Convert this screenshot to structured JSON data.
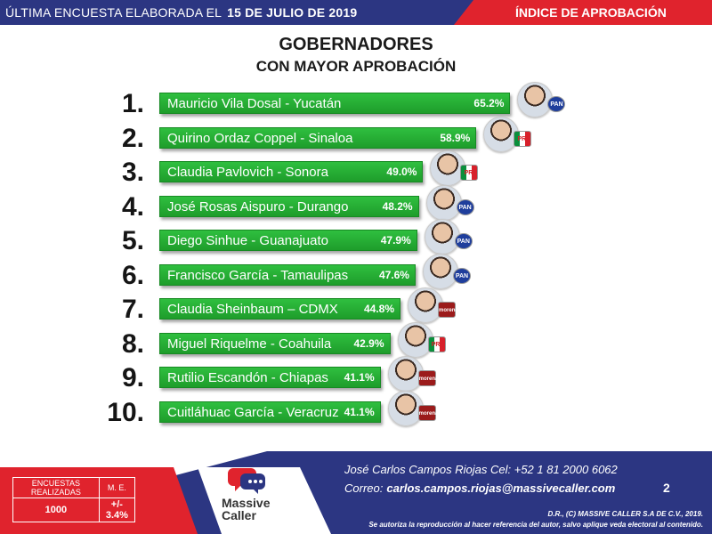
{
  "header": {
    "left_text": "ÚLTIMA ENCUESTA ELABORADA EL",
    "date": "15 DE JULIO DE 2019",
    "right_text": "ÍNDICE DE APROBACIÓN"
  },
  "chart_data": {
    "type": "bar",
    "title": "GOBERNADORES",
    "subtitle": "CON MAYOR APROBACIÓN",
    "categories": [
      "Mauricio Vila Dosal - Yucatán",
      "Quirino Ordaz Coppel - Sinaloa",
      "Claudia Pavlovich - Sonora",
      "José Rosas Aispuro - Durango",
      "Diego Sinhue - Guanajuato",
      "Francisco García - Tamaulipas",
      "Claudia Sheinbaum – CDMX",
      "Miguel Riquelme - Coahuila",
      "Rutilio Escandón - Chiapas",
      "Cuitláhuac García - Veracruz"
    ],
    "ranks": [
      "1.",
      "2.",
      "3.",
      "4.",
      "5.",
      "6.",
      "7.",
      "8.",
      "9.",
      "10."
    ],
    "values": [
      65.2,
      58.9,
      49.0,
      48.2,
      47.9,
      47.6,
      44.8,
      42.9,
      41.1,
      41.1
    ],
    "value_labels": [
      "65.2%",
      "58.9%",
      "49.0%",
      "48.2%",
      "47.9%",
      "47.6%",
      "44.8%",
      "42.9%",
      "41.1%",
      "41.1%"
    ],
    "parties": [
      "pan",
      "pri",
      "pri",
      "pan",
      "pan",
      "pan",
      "morena",
      "pri",
      "morena",
      "morena"
    ],
    "party_labels": [
      "PAN",
      "PRI",
      "PRI",
      "PAN",
      "PAN",
      "PAN",
      "morena",
      "PRI",
      "morena",
      "morena"
    ],
    "xlim": [
      0,
      100
    ],
    "colors": {
      "bar": "#22a834"
    }
  },
  "footer": {
    "table_headers": [
      "ENCUESTAS REALIZADAS",
      "M. E."
    ],
    "table_values": [
      "1000",
      "+/- 3.4%"
    ],
    "logo_text": "Massive Caller",
    "contact_line": "José Carlos Campos Riojas Cel: +52 1 81 2000 6062",
    "email_label": "Correo:",
    "email": "carlos.campos.riojas@massivecaller.com",
    "page_number": "2",
    "copyright": "D.R., (C) MASSIVE CALLER S.A DE C.V., 2019.",
    "disclaimer": "Se autoriza la reproducción al hacer referencia del autor, salvo aplique veda electoral al contenido."
  },
  "colors": {
    "blue": "#2c3682",
    "red": "#e0232d",
    "green": "#22a834"
  }
}
